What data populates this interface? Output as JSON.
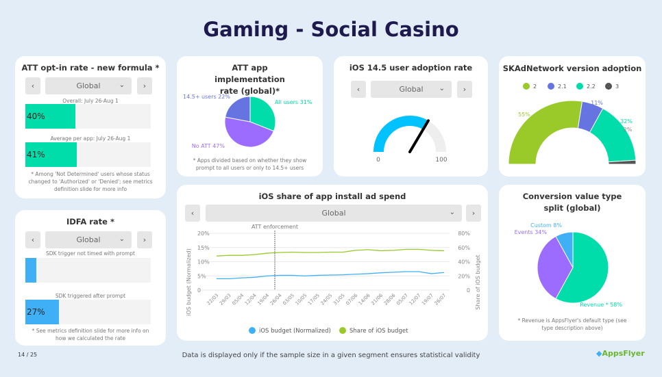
{
  "title": "Gaming - Social Casino",
  "colors": {
    "teal": "#00dcaa",
    "purple": "#9b6cff",
    "indigo": "#6574e0",
    "blue": "#3fb0f5",
    "green": "#9ac92a",
    "gray": "#555555",
    "cyan": "#00c2ff"
  },
  "att_optin": {
    "title": "ATT opt-in rate - new formula *",
    "segment": "Global",
    "overall_label": "Overall: July 26-Aug 1",
    "overall_value": 40,
    "overall_text": "40%",
    "avg_label": "Average per app: July 26-Aug 1",
    "avg_value": 41,
    "avg_text": "41%",
    "note": "* Among 'Not Determined' users whose status changed to 'Authorized' or 'Denied'; see metrics definition slide for more info"
  },
  "idfa": {
    "title": "IDFA rate *",
    "segment": "Global",
    "not_timed_label": "SDK trigger not timed with prompt",
    "not_timed_value": 9,
    "after_label": "SDK triggered after prompt",
    "after_value": 27,
    "after_text": "27%",
    "note": "* See metrics definition slide for more info on how we calculated the rate"
  },
  "att_impl": {
    "title": "ATT app implementation rate (global)*",
    "note": "* Apps divided based on whether they show prompt to all users or only to 14.5+ users",
    "chart_data": {
      "type": "pie",
      "slices": [
        {
          "label": "All users 31%",
          "value": 31,
          "color": "#00dcaa"
        },
        {
          "label": "No ATT 47%",
          "value": 47,
          "color": "#9b6cff"
        },
        {
          "label": "14.5+ users 22%",
          "value": 22,
          "color": "#6574e0"
        }
      ]
    }
  },
  "ios145": {
    "title": "iOS 14.5 user adoption rate",
    "segment": "Global",
    "chart_data": {
      "type": "gauge",
      "value": 67,
      "min": 0,
      "max": 100,
      "min_label": "0",
      "max_label": "100"
    }
  },
  "skan": {
    "title": "SKAdNetwork version adoption",
    "chart_data": {
      "type": "pie",
      "legend": "top",
      "slices": [
        {
          "name": "2",
          "value": 55,
          "label": "55%",
          "color": "#9ac92a"
        },
        {
          "name": "2.1",
          "value": 11,
          "label": "11%",
          "color": "#6574e0"
        },
        {
          "name": "2.2",
          "value": 32,
          "label": "32%",
          "color": "#00dcaa"
        },
        {
          "name": "3",
          "value": 2,
          "label": "2%",
          "color": "#555555"
        }
      ]
    }
  },
  "share": {
    "title": "iOS share of app install ad spend",
    "segment": "Global",
    "chart_data": {
      "type": "line",
      "annotation": "ATT enforcement",
      "annotation_x": "26/04",
      "x": [
        "22/03",
        "29/03",
        "05/04",
        "12/04",
        "19/04",
        "26/04",
        "03/05",
        "10/05",
        "17/05",
        "24/05",
        "31/05",
        "07/06",
        "14/06",
        "21/06",
        "28/06",
        "05/07",
        "12/07",
        "19/07",
        "26/07"
      ],
      "ylabel": "iOS budget (Normalized)",
      "y2label": "Share of iOS budget",
      "ylim": [
        0,
        20
      ],
      "y2lim": [
        0,
        80
      ],
      "yticks": [
        "0",
        "5%",
        "10%",
        "15%",
        "20%"
      ],
      "y2ticks": [
        "0",
        "20%",
        "40%",
        "60%",
        "80%"
      ],
      "grid": true,
      "legend": "bottom",
      "series": [
        {
          "name": "iOS budget (Normalized)",
          "axis": "left",
          "color": "#3fb0f5",
          "values": [
            4,
            4,
            4.3,
            4.5,
            5,
            5.2,
            5.2,
            5,
            5.2,
            5.3,
            5.4,
            5.6,
            5.8,
            6.1,
            6.3,
            6.5,
            6.5,
            5.8,
            6.2
          ]
        },
        {
          "name": "Share of iOS budget",
          "axis": "right",
          "color": "#9ac92a",
          "values": [
            48,
            49,
            49,
            50,
            52,
            53,
            53.5,
            53,
            53,
            53.5,
            53.5,
            56,
            57,
            55.5,
            56,
            57.5,
            57.5,
            56,
            55.5
          ]
        }
      ]
    }
  },
  "cv": {
    "title": "Conversion value type split (global)",
    "note": "* Revenue is AppsFlyer's default type (see type description above)",
    "chart_data": {
      "type": "pie",
      "slices": [
        {
          "label": "Revenue * 58%",
          "value": 58,
          "color": "#00dcaa"
        },
        {
          "label": "Events 34%",
          "value": 34,
          "color": "#9b6cff"
        },
        {
          "label": "Custom 8%",
          "value": 8,
          "color": "#3fb0f5"
        }
      ]
    }
  },
  "footer": {
    "page": "14 / 25",
    "disclaimer": "Data is displayed only if the sample size in a given segment ensures statistical validity",
    "logo": "AppsFlyer"
  }
}
